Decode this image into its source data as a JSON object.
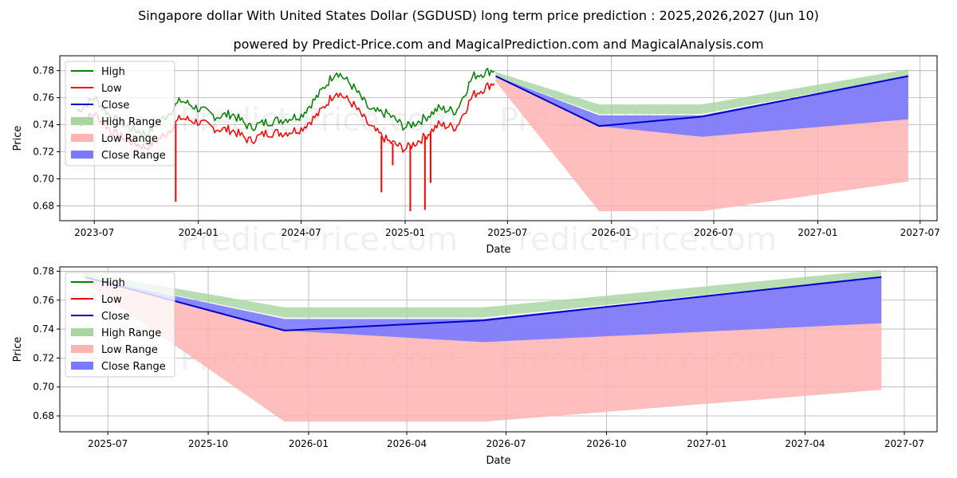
{
  "title": "Singapore dollar With United States Dollar (SGDUSD) long term price prediction : 2025,2026,2027 (Jun 10)",
  "subtitle": "powered by Predict-Price.com and MagicalPrediction.com and MagicalAnalysis.com",
  "watermark": "Predict-Price.com",
  "colors": {
    "high": "#008000",
    "low": "#ff0000",
    "close": "#0000cc",
    "high_range": "#a8d5a0",
    "low_range": "#ffb3b3",
    "close_range": "#7a7aff"
  },
  "legend": {
    "placement": "upper-left",
    "entries": [
      "High",
      "Low",
      "Close",
      "High Range",
      "Low Range",
      "Close Range"
    ]
  },
  "chart_data": [
    {
      "type": "line",
      "xlabel": "Date",
      "ylabel": "Price",
      "xlim": [
        "2023-05-01",
        "2027-07-31"
      ],
      "ylim": [
        0.669,
        0.791
      ],
      "grid": true,
      "x_ticks": [
        "2023-07",
        "2024-01",
        "2024-07",
        "2025-01",
        "2025-07",
        "2026-01",
        "2026-07",
        "2027-01",
        "2027-07"
      ],
      "y_ticks": [
        "0.68",
        "0.70",
        "0.72",
        "0.74",
        "0.76",
        "0.78"
      ],
      "history": {
        "dates": [
          "2023-06-01",
          "2023-07-01",
          "2023-08-01",
          "2023-09-01",
          "2023-10-01",
          "2023-11-01",
          "2023-12-01",
          "2024-01-01",
          "2024-02-01",
          "2024-03-01",
          "2024-04-01",
          "2024-05-01",
          "2024-06-01",
          "2024-07-01",
          "2024-08-01",
          "2024-09-01",
          "2024-10-01",
          "2024-11-01",
          "2024-12-01",
          "2025-01-01",
          "2025-02-01",
          "2025-03-01",
          "2025-04-01",
          "2025-05-01",
          "2025-06-10"
        ],
        "high": [
          0.75,
          0.76,
          0.745,
          0.738,
          0.733,
          0.745,
          0.758,
          0.752,
          0.746,
          0.748,
          0.738,
          0.742,
          0.744,
          0.747,
          0.762,
          0.78,
          0.768,
          0.75,
          0.748,
          0.738,
          0.744,
          0.752,
          0.75,
          0.776,
          0.781
        ],
        "low": [
          0.74,
          0.748,
          0.735,
          0.728,
          0.723,
          0.732,
          0.745,
          0.742,
          0.737,
          0.736,
          0.728,
          0.734,
          0.734,
          0.737,
          0.748,
          0.765,
          0.755,
          0.738,
          0.728,
          0.722,
          0.73,
          0.74,
          0.738,
          0.762,
          0.772
        ],
        "close": [
          0.745,
          0.754,
          0.74,
          0.733,
          0.728,
          0.738,
          0.751,
          0.747,
          0.741,
          0.742,
          0.733,
          0.738,
          0.739,
          0.742,
          0.755,
          0.772,
          0.761,
          0.744,
          0.738,
          0.73,
          0.737,
          0.746,
          0.744,
          0.77,
          0.776
        ],
        "low_spikes": [
          {
            "x": "2023-11-22",
            "y": 0.683
          },
          {
            "x": "2024-11-20",
            "y": 0.69
          },
          {
            "x": "2024-12-10",
            "y": 0.71
          },
          {
            "x": "2025-01-10",
            "y": 0.676
          },
          {
            "x": "2025-02-05",
            "y": 0.677
          },
          {
            "x": "2025-02-15",
            "y": 0.697
          }
        ]
      },
      "forecast": {
        "dates": [
          "2025-06-10",
          "2025-12-10",
          "2026-06-10",
          "2027-06-10"
        ],
        "close": [
          0.776,
          0.739,
          0.746,
          0.776
        ],
        "high_range": {
          "lower": [
            0.776,
            0.748,
            0.748,
            0.776
          ],
          "upper": [
            0.779,
            0.755,
            0.755,
            0.781
          ]
        },
        "low_range": {
          "lower": [
            0.772,
            0.676,
            0.676,
            0.698
          ],
          "upper": [
            0.776,
            0.739,
            0.746,
            0.776
          ]
        },
        "close_range": {
          "lower": [
            0.776,
            0.739,
            0.731,
            0.744
          ],
          "upper": [
            0.776,
            0.747,
            0.747,
            0.776
          ]
        }
      }
    },
    {
      "type": "line",
      "xlabel": "Date",
      "ylabel": "Price",
      "xlim": [
        "2025-05-18",
        "2027-07-31"
      ],
      "ylim": [
        0.669,
        0.783
      ],
      "grid": true,
      "x_ticks": [
        "2025-07",
        "2025-10",
        "2026-01",
        "2026-04",
        "2026-07",
        "2026-10",
        "2027-01",
        "2027-04",
        "2027-07"
      ],
      "y_ticks": [
        "0.68",
        "0.70",
        "0.72",
        "0.74",
        "0.76",
        "0.78"
      ],
      "forecast": {
        "dates": [
          "2025-06-10",
          "2025-12-10",
          "2026-06-10",
          "2027-06-10"
        ],
        "close": [
          0.776,
          0.739,
          0.746,
          0.776
        ],
        "high_range": {
          "lower": [
            0.776,
            0.748,
            0.748,
            0.776
          ],
          "upper": [
            0.779,
            0.755,
            0.755,
            0.781
          ]
        },
        "low_range": {
          "lower": [
            0.772,
            0.676,
            0.676,
            0.698
          ],
          "upper": [
            0.776,
            0.739,
            0.746,
            0.776
          ]
        },
        "close_range": {
          "lower": [
            0.776,
            0.739,
            0.731,
            0.744
          ],
          "upper": [
            0.776,
            0.747,
            0.747,
            0.776
          ]
        }
      }
    }
  ]
}
